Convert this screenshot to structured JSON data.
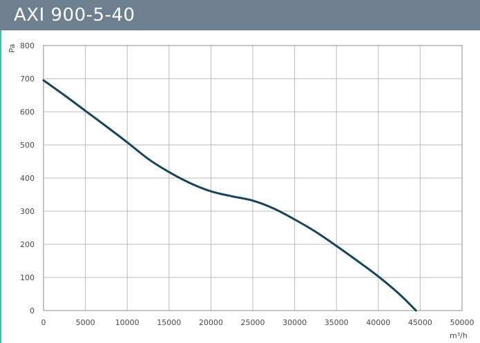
{
  "header": {
    "title": "AXI 900-5-40"
  },
  "colors": {
    "title_bar": "#6e7f8f",
    "curve": "#12455c",
    "grid": "#b9b9b9",
    "frame": "#8c8c8c",
    "accent_left_line": "#2ec4b6"
  },
  "chart_data": {
    "type": "line",
    "xlabel": "m³/h",
    "ylabel": "Pa",
    "xlim": [
      0,
      50000
    ],
    "ylim": [
      0,
      800
    ],
    "grid": true,
    "x_ticks": [
      0,
      5000,
      10000,
      15000,
      20000,
      25000,
      30000,
      35000,
      40000,
      45000,
      50000
    ],
    "y_ticks": [
      0,
      100,
      200,
      300,
      400,
      500,
      600,
      700,
      800
    ],
    "x_tick_labels": [
      "0",
      "5000",
      "10000",
      "15000",
      "20000",
      "25000",
      "30000",
      "35000",
      "40000",
      "45000",
      "50000"
    ],
    "y_tick_labels": [
      "0",
      "100",
      "200",
      "300",
      "400",
      "500",
      "600",
      "700",
      "800"
    ],
    "series": [
      {
        "x": [
          0,
          2500,
          5000,
          7500,
          10000,
          12500,
          15000,
          17500,
          20000,
          22500,
          25000,
          27500,
          30000,
          32500,
          35000,
          37500,
          40000,
          42500,
          44500
        ],
        "y": [
          695,
          650,
          603,
          556,
          508,
          458,
          418,
          385,
          360,
          345,
          332,
          308,
          275,
          238,
          195,
          150,
          103,
          50,
          0
        ]
      }
    ]
  }
}
